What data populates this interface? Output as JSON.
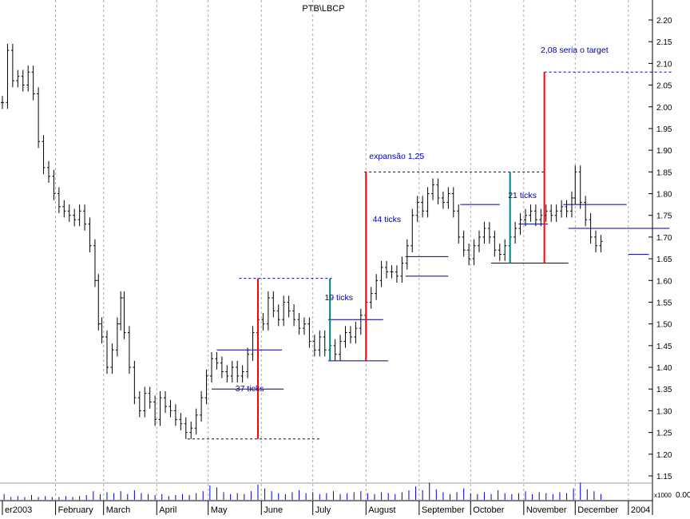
{
  "chart_data": {
    "type": "bar",
    "title": "PTB\\LBCP",
    "xlabel": "",
    "ylabel": "",
    "ylim": [
      1.13,
      2.27
    ],
    "y_ticks": [
      "1.15",
      "1.20",
      "1.25",
      "1.30",
      "1.35",
      "1.40",
      "1.45",
      "1.50",
      "1.55",
      "1.60",
      "1.65",
      "1.70",
      "1.75",
      "1.80",
      "1.85",
      "1.90",
      "1.95",
      "2.00",
      "2.05",
      "2.10",
      "2.15",
      "2.20"
    ],
    "months": [
      {
        "label": "er2003",
        "day": 0
      },
      {
        "label": "February",
        "day": 31
      },
      {
        "label": "March",
        "day": 59
      },
      {
        "label": "April",
        "day": 90
      },
      {
        "label": "May",
        "day": 120
      },
      {
        "label": "June",
        "day": 151
      },
      {
        "label": "July",
        "day": 181
      },
      {
        "label": "August",
        "day": 212
      },
      {
        "label": "September",
        "day": 243
      },
      {
        "label": "October",
        "day": 273
      },
      {
        "label": "November",
        "day": 304
      },
      {
        "label": "December",
        "day": 334
      },
      {
        "label": "2004",
        "day": 365
      }
    ],
    "x_end_day": 383,
    "volume_axis_label": "x1000",
    "volume_zero_label": "0.00",
    "price_series": [
      [
        0,
        2.01
      ],
      [
        3,
        2.13
      ],
      [
        6,
        2.06
      ],
      [
        9,
        2.07
      ],
      [
        12,
        2.05
      ],
      [
        15,
        2.08
      ],
      [
        18,
        2.03
      ],
      [
        21,
        1.92
      ],
      [
        24,
        1.86
      ],
      [
        27,
        1.84
      ],
      [
        30,
        1.8
      ],
      [
        33,
        1.77
      ],
      [
        36,
        1.76
      ],
      [
        39,
        1.75
      ],
      [
        42,
        1.74
      ],
      [
        45,
        1.76
      ],
      [
        48,
        1.73
      ],
      [
        51,
        1.68
      ],
      [
        54,
        1.6
      ],
      [
        56,
        1.5
      ],
      [
        58,
        1.47
      ],
      [
        61,
        1.4
      ],
      [
        64,
        1.44
      ],
      [
        67,
        1.5
      ],
      [
        69,
        1.56
      ],
      [
        71,
        1.48
      ],
      [
        74,
        1.4
      ],
      [
        77,
        1.33
      ],
      [
        80,
        1.3
      ],
      [
        83,
        1.34
      ],
      [
        86,
        1.32
      ],
      [
        89,
        1.28
      ],
      [
        92,
        1.33
      ],
      [
        95,
        1.31
      ],
      [
        98,
        1.3
      ],
      [
        101,
        1.28
      ],
      [
        104,
        1.27
      ],
      [
        107,
        1.25
      ],
      [
        110,
        1.26
      ],
      [
        113,
        1.29
      ],
      [
        116,
        1.33
      ],
      [
        119,
        1.38
      ],
      [
        122,
        1.42
      ],
      [
        125,
        1.41
      ],
      [
        128,
        1.39
      ],
      [
        131,
        1.38
      ],
      [
        134,
        1.4
      ],
      [
        137,
        1.38
      ],
      [
        140,
        1.39
      ],
      [
        143,
        1.43
      ],
      [
        146,
        1.48
      ],
      [
        149,
        1.51
      ],
      [
        152,
        1.5
      ],
      [
        155,
        1.56
      ],
      [
        158,
        1.53
      ],
      [
        161,
        1.51
      ],
      [
        164,
        1.55
      ],
      [
        167,
        1.53
      ],
      [
        170,
        1.51
      ],
      [
        173,
        1.49
      ],
      [
        176,
        1.5
      ],
      [
        179,
        1.46
      ],
      [
        182,
        1.44
      ],
      [
        185,
        1.47
      ],
      [
        188,
        1.44
      ],
      [
        191,
        1.45
      ],
      [
        194,
        1.43
      ],
      [
        197,
        1.46
      ],
      [
        200,
        1.48
      ],
      [
        203,
        1.47
      ],
      [
        206,
        1.49
      ],
      [
        209,
        1.52
      ],
      [
        212,
        1.55
      ],
      [
        215,
        1.57
      ],
      [
        218,
        1.6
      ],
      [
        221,
        1.63
      ],
      [
        224,
        1.62
      ],
      [
        227,
        1.62
      ],
      [
        230,
        1.61
      ],
      [
        233,
        1.64
      ],
      [
        236,
        1.68
      ],
      [
        239,
        1.75
      ],
      [
        242,
        1.78
      ],
      [
        245,
        1.76
      ],
      [
        248,
        1.8
      ],
      [
        251,
        1.82
      ],
      [
        254,
        1.79
      ],
      [
        257,
        1.78
      ],
      [
        260,
        1.8
      ],
      [
        263,
        1.76
      ],
      [
        266,
        1.7
      ],
      [
        269,
        1.67
      ],
      [
        272,
        1.65
      ],
      [
        275,
        1.68
      ],
      [
        278,
        1.7
      ],
      [
        281,
        1.72
      ],
      [
        284,
        1.7
      ],
      [
        287,
        1.67
      ],
      [
        290,
        1.66
      ],
      [
        293,
        1.68
      ],
      [
        296,
        1.7
      ],
      [
        299,
        1.72
      ],
      [
        302,
        1.74
      ],
      [
        305,
        1.75
      ],
      [
        308,
        1.76
      ],
      [
        311,
        1.74
      ],
      [
        314,
        1.75
      ],
      [
        317,
        1.76
      ],
      [
        320,
        1.75
      ],
      [
        323,
        1.76
      ],
      [
        326,
        1.77
      ],
      [
        329,
        1.76
      ],
      [
        332,
        1.79
      ],
      [
        334,
        1.85
      ],
      [
        337,
        1.78
      ],
      [
        340,
        1.74
      ],
      [
        343,
        1.7
      ],
      [
        346,
        1.68
      ],
      [
        349,
        1.69
      ]
    ],
    "volume_series": [
      [
        1,
        0.6
      ],
      [
        5,
        0.3
      ],
      [
        9,
        0.4
      ],
      [
        13,
        0.3
      ],
      [
        17,
        0.5
      ],
      [
        21,
        0.3
      ],
      [
        25,
        0.4
      ],
      [
        29,
        0.3
      ],
      [
        33,
        0.3
      ],
      [
        37,
        0.4
      ],
      [
        41,
        0.3
      ],
      [
        45,
        0.4
      ],
      [
        49,
        0.5
      ],
      [
        53,
        0.9
      ],
      [
        57,
        0.6
      ],
      [
        61,
        0.8
      ],
      [
        65,
        0.7
      ],
      [
        69,
        0.9
      ],
      [
        73,
        0.6
      ],
      [
        77,
        1.0
      ],
      [
        81,
        0.7
      ],
      [
        85,
        0.6
      ],
      [
        89,
        0.5
      ],
      [
        93,
        0.6
      ],
      [
        97,
        0.4
      ],
      [
        101,
        0.5
      ],
      [
        105,
        0.6
      ],
      [
        109,
        0.5
      ],
      [
        113,
        0.7
      ],
      [
        117,
        0.9
      ],
      [
        121,
        1.5
      ],
      [
        125,
        1.3
      ],
      [
        129,
        0.8
      ],
      [
        133,
        0.6
      ],
      [
        137,
        0.7
      ],
      [
        141,
        0.6
      ],
      [
        145,
        0.9
      ],
      [
        149,
        1.6
      ],
      [
        153,
        1.2
      ],
      [
        157,
        0.9
      ],
      [
        161,
        0.7
      ],
      [
        165,
        0.6
      ],
      [
        169,
        0.8
      ],
      [
        173,
        1.0
      ],
      [
        177,
        0.7
      ],
      [
        181,
        0.8
      ],
      [
        185,
        0.6
      ],
      [
        189,
        0.7
      ],
      [
        193,
        0.9
      ],
      [
        197,
        0.6
      ],
      [
        201,
        0.7
      ],
      [
        205,
        0.8
      ],
      [
        209,
        0.9
      ],
      [
        213,
        0.7
      ],
      [
        217,
        0.6
      ],
      [
        221,
        0.8
      ],
      [
        225,
        0.7
      ],
      [
        229,
        0.6
      ],
      [
        233,
        0.8
      ],
      [
        237,
        1.0
      ],
      [
        241,
        1.4
      ],
      [
        245,
        1.0
      ],
      [
        249,
        1.8
      ],
      [
        253,
        1.1
      ],
      [
        257,
        0.8
      ],
      [
        261,
        0.6
      ],
      [
        265,
        0.8
      ],
      [
        269,
        1.2
      ],
      [
        273,
        0.7
      ],
      [
        277,
        0.6
      ],
      [
        281,
        0.8
      ],
      [
        285,
        0.6
      ],
      [
        289,
        1.0
      ],
      [
        293,
        0.7
      ],
      [
        297,
        0.6
      ],
      [
        301,
        0.7
      ],
      [
        305,
        0.9
      ],
      [
        309,
        0.6
      ],
      [
        313,
        0.8
      ],
      [
        317,
        0.7
      ],
      [
        321,
        0.6
      ],
      [
        325,
        0.8
      ],
      [
        329,
        0.7
      ],
      [
        333,
        1.2
      ],
      [
        337,
        1.8
      ],
      [
        341,
        1.1
      ],
      [
        345,
        0.9
      ],
      [
        349,
        0.6
      ]
    ],
    "annotations": [
      {
        "text": "37 ticks",
        "day": 134,
        "y": 1.345
      },
      {
        "text": "19 ticks",
        "day": 186,
        "y": 1.555
      },
      {
        "text": "44 ticks",
        "day": 214,
        "y": 1.735
      },
      {
        "text": "expansão 1,25",
        "day": 212,
        "y": 1.88
      },
      {
        "text": "21 ticks",
        "day": 293,
        "y": 1.79
      },
      {
        "text": "2,08 seria o target",
        "day": 312,
        "y": 2.125
      }
    ],
    "red_lines": [
      {
        "day": 149,
        "from": 1.235,
        "to": 1.605
      },
      {
        "day": 212,
        "from": 1.415,
        "to": 1.85
      },
      {
        "day": 316,
        "from": 1.64,
        "to": 2.08
      }
    ],
    "green_lines": [
      {
        "day": 191,
        "from": 1.415,
        "to": 1.605
      },
      {
        "day": 296,
        "from": 1.64,
        "to": 1.85
      }
    ],
    "blue_levels": [
      {
        "d1": 125,
        "d2": 163,
        "y": 1.44
      },
      {
        "d1": 122,
        "d2": 164,
        "y": 1.35
      },
      {
        "d1": 190,
        "d2": 222,
        "y": 1.51
      },
      {
        "d1": 190,
        "d2": 225,
        "y": 1.415
      },
      {
        "d1": 235,
        "d2": 260,
        "y": 1.655
      },
      {
        "d1": 235,
        "d2": 260,
        "y": 1.61
      },
      {
        "d1": 267,
        "d2": 290,
        "y": 1.775
      },
      {
        "d1": 285,
        "d2": 330,
        "y": 1.64
      },
      {
        "d1": 301,
        "d2": 318,
        "y": 1.73
      },
      {
        "d1": 327,
        "d2": 364,
        "y": 1.775
      },
      {
        "d1": 330,
        "d2": 364,
        "y": 1.72
      },
      {
        "d1": 364,
        "d2": 389,
        "y": 1.72
      },
      {
        "d1": 365,
        "d2": 377,
        "y": 1.66
      }
    ],
    "dashed_levels": [
      {
        "d1": 108,
        "d2": 185,
        "y": 1.235
      },
      {
        "d1": 138,
        "d2": 192,
        "y": 1.605
      },
      {
        "d1": 211,
        "d2": 316,
        "y": 1.85
      },
      {
        "d1": 316,
        "d2": 390,
        "y": 2.08
      }
    ],
    "colors": {
      "price": "#000000",
      "volume": "#0000cc",
      "level": "#00008b",
      "red_line": "#ff0000",
      "green_line": "#008080",
      "annotation": "#0000aa",
      "grid": "#aaaaaa"
    }
  }
}
